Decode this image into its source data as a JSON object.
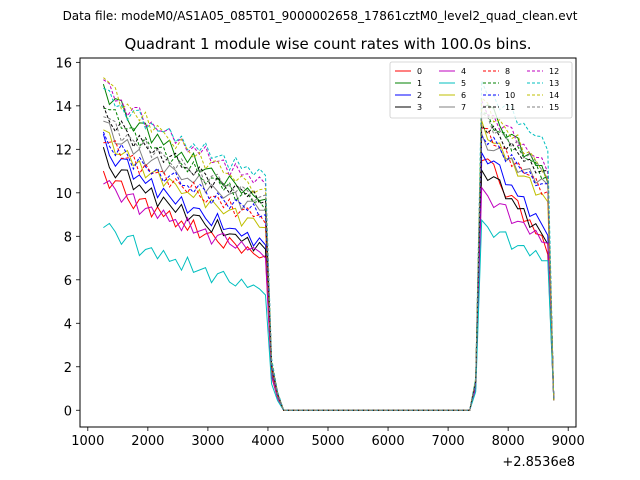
{
  "suptitle": "Data file: modeM0/AS1A05_085T01_9000002658_17861cztM0_level2_quad_clean.evt",
  "chart_data": {
    "type": "line",
    "title": "Quadrant 1 module wise count rates with 100.0s bins.",
    "xlabel": "",
    "ylabel": "",
    "x_offset_label": "+2.8536e8",
    "xlim": [
      870,
      9130
    ],
    "ylim": [
      -0.77,
      16.2
    ],
    "x_ticks": [
      1000,
      2000,
      3000,
      4000,
      5000,
      6000,
      7000,
      8000,
      9000
    ],
    "x_tick_labels": [
      "1000",
      "2000",
      "3000",
      "4000",
      "5000",
      "6000",
      "7000",
      "8000",
      "9000"
    ],
    "y_ticks": [
      0,
      2,
      4,
      6,
      8,
      10,
      12,
      14,
      16
    ],
    "y_tick_labels": [
      "0",
      "2",
      "4",
      "6",
      "8",
      "10",
      "12",
      "14",
      "16"
    ],
    "grid": false,
    "legend_position": "top-right",
    "legend_columns": 4,
    "segments": {
      "first_x": [
        1260,
        1360,
        1460,
        1560,
        1660,
        1760,
        1860,
        1960,
        2060,
        2160,
        2260,
        2360,
        2460,
        2560,
        2660,
        2760,
        2860,
        2960,
        3060,
        3160,
        3260,
        3360,
        3460,
        3560,
        3660,
        3760,
        3860,
        3960,
        4060,
        4160
      ],
      "gap_x": [
        4260,
        5000,
        6000,
        7000,
        7360
      ],
      "gap_value": 0,
      "second_x": [
        7460,
        7560,
        7660,
        7760,
        7860,
        7960,
        8060,
        8160,
        8260,
        8360,
        8460,
        8560,
        8660,
        8760
      ]
    },
    "series": [
      {
        "name": "0",
        "color": "#ff0000",
        "dash": "solid",
        "first_start": 11.0,
        "first_end": 7.0,
        "first_pattern": [
          0.0,
          -0.4,
          0.2,
          0.4,
          -0.2,
          -0.5,
          0.1,
          0.3,
          -0.4,
          0.2,
          -0.1,
          0.3,
          -0.3,
          0.1,
          -0.2,
          0.4,
          -0.3,
          0.0,
          0.2,
          -0.1,
          -0.3,
          0.3,
          0.1,
          -0.2,
          0.2,
          0.0,
          -0.1,
          0.1
        ],
        "second_peak": 11.8,
        "second_end": 7.4
      },
      {
        "name": "1",
        "color": "#008000",
        "dash": "solid",
        "first_start": 15.0,
        "first_end": 9.6,
        "first_pattern": [
          0.0,
          -0.4,
          0.2,
          0.4,
          -0.2,
          -0.5,
          0.1,
          0.3,
          -0.4,
          0.2,
          -0.1,
          0.3,
          -0.3,
          0.1,
          -0.2,
          0.4,
          -0.3,
          0.0,
          0.2,
          -0.1,
          -0.3,
          0.3,
          0.1,
          -0.2,
          0.2,
          0.0,
          -0.1,
          0.1
        ],
        "second_peak": 14.2,
        "second_end": 10.7
      },
      {
        "name": "2",
        "color": "#0000ff",
        "dash": "solid",
        "first_start": 12.4,
        "first_end": 7.6,
        "first_pattern": [
          0.3,
          -0.2,
          -0.4,
          0.2,
          0.4,
          -0.3,
          0.1,
          -0.1,
          0.3,
          -0.4,
          0.2,
          0.0,
          -0.2,
          0.3,
          -0.3,
          0.1,
          0.2,
          -0.1,
          -0.3,
          0.4,
          -0.2,
          0.0,
          0.1,
          -0.1,
          0.2,
          -0.3,
          0.2,
          0.0
        ],
        "second_peak": 12.0,
        "second_end": 8.2
      },
      {
        "name": "3",
        "color": "#000000",
        "dash": "solid",
        "first_start": 11.8,
        "first_end": 7.4,
        "first_pattern": [
          0.3,
          -0.2,
          -0.4,
          0.2,
          0.4,
          -0.3,
          0.1,
          -0.1,
          0.3,
          -0.4,
          0.2,
          0.0,
          -0.2,
          0.3,
          -0.3,
          0.1,
          0.2,
          -0.1,
          -0.3,
          0.4,
          -0.2,
          0.0,
          0.1,
          -0.1,
          0.2,
          -0.3,
          0.2,
          0.0
        ],
        "second_peak": 11.2,
        "second_end": 7.8
      },
      {
        "name": "4",
        "color": "#bf00bf",
        "dash": "solid",
        "first_start": 10.6,
        "first_end": 7.2,
        "first_pattern": [
          -0.2,
          0.3,
          0.1,
          -0.3,
          0.2,
          0.4,
          -0.4,
          0.0,
          0.2,
          -0.2,
          0.3,
          -0.1,
          0.1,
          -0.3,
          0.4,
          -0.2,
          0.0,
          0.2,
          -0.4,
          0.1,
          0.3,
          -0.1,
          -0.2,
          0.2,
          -0.1,
          0.1,
          0.0,
          -0.2
        ],
        "second_peak": 10.0,
        "second_end": 7.6
      },
      {
        "name": "5",
        "color": "#00bfbf",
        "dash": "solid",
        "first_start": 8.6,
        "first_end": 5.5,
        "first_pattern": [
          -0.2,
          0.3,
          0.1,
          -0.3,
          0.2,
          0.4,
          -0.4,
          0.0,
          0.2,
          -0.2,
          0.3,
          -0.1,
          0.1,
          -0.3,
          0.4,
          -0.2,
          0.0,
          0.2,
          -0.4,
          0.1,
          0.3,
          -0.1,
          -0.2,
          0.2,
          -0.1,
          0.1,
          0.0,
          -0.2
        ],
        "second_peak": 8.5,
        "second_end": 6.8
      },
      {
        "name": "6",
        "color": "#bfbf00",
        "dash": "solid",
        "first_start": 12.8,
        "first_end": 8.4,
        "first_pattern": [
          0.1,
          0.4,
          -0.3,
          -0.1,
          0.3,
          -0.2,
          0.2,
          -0.4,
          0.0,
          0.3,
          -0.3,
          0.2,
          0.1,
          -0.2,
          0.0,
          -0.1,
          0.4,
          -0.3,
          0.2,
          0.0,
          -0.2,
          0.1,
          0.3,
          -0.4,
          0.1,
          0.2,
          -0.1,
          0.0
        ],
        "second_peak": 13.0,
        "second_end": 9.5
      },
      {
        "name": "7",
        "color": "#808080",
        "dash": "solid",
        "first_start": 13.2,
        "first_end": 9.2,
        "first_pattern": [
          0.1,
          0.4,
          -0.3,
          -0.1,
          0.3,
          -0.2,
          0.2,
          -0.4,
          0.0,
          0.3,
          -0.3,
          0.2,
          0.1,
          -0.2,
          0.0,
          -0.1,
          0.4,
          -0.3,
          0.2,
          0.0,
          -0.2,
          0.1,
          0.3,
          -0.4,
          0.1,
          0.2,
          -0.1,
          0.0
        ],
        "second_peak": 12.4,
        "second_end": 10.3
      },
      {
        "name": "8",
        "color": "#ff0000",
        "dash": "dashed",
        "first_start": 12.6,
        "first_end": 8.8,
        "first_pattern": [
          -0.3,
          0.1,
          0.4,
          -0.2,
          0.0,
          0.3,
          -0.4,
          0.2,
          -0.1,
          0.1,
          0.3,
          -0.3,
          0.2,
          0.0,
          -0.2,
          0.4,
          -0.1,
          -0.3,
          0.1,
          0.2,
          -0.2,
          0.3,
          -0.4,
          0.0,
          0.2,
          -0.1,
          0.1,
          -0.2
        ],
        "second_peak": 12.9,
        "second_end": 9.9
      },
      {
        "name": "9",
        "color": "#008000",
        "dash": "dashed",
        "first_start": 14.2,
        "first_end": 9.4,
        "first_pattern": [
          -0.3,
          0.1,
          0.4,
          -0.2,
          0.0,
          0.3,
          -0.4,
          0.2,
          -0.1,
          0.1,
          0.3,
          -0.3,
          0.2,
          0.0,
          -0.2,
          0.4,
          -0.1,
          -0.3,
          0.1,
          0.2,
          -0.2,
          0.3,
          -0.4,
          0.0,
          0.2,
          -0.1,
          0.1,
          -0.2
        ],
        "second_peak": 13.6,
        "second_end": 10.6
      },
      {
        "name": "10",
        "color": "#0000ff",
        "dash": "dashed",
        "first_start": 12.6,
        "first_end": 9.0,
        "first_pattern": [
          0.2,
          -0.1,
          -0.3,
          0.4,
          0.1,
          -0.4,
          0.3,
          0.0,
          -0.2,
          0.2,
          -0.3,
          0.1,
          0.4,
          -0.1,
          0.0,
          -0.2,
          0.3,
          0.1,
          -0.4,
          0.2,
          0.0,
          -0.3,
          0.2,
          0.1,
          -0.1,
          0.3,
          -0.2,
          0.0
        ],
        "second_peak": 12.7,
        "second_end": 10.1
      },
      {
        "name": "11",
        "color": "#000000",
        "dash": "dashed",
        "first_start": 13.8,
        "first_end": 9.6,
        "first_pattern": [
          0.2,
          -0.1,
          -0.3,
          0.4,
          0.1,
          -0.4,
          0.3,
          0.0,
          -0.2,
          0.2,
          -0.3,
          0.1,
          0.4,
          -0.1,
          0.0,
          -0.2,
          0.3,
          0.1,
          -0.4,
          0.2,
          0.0,
          -0.3,
          0.2,
          0.1,
          -0.1,
          0.3,
          -0.2,
          0.0
        ],
        "second_peak": 13.2,
        "second_end": 10.7
      },
      {
        "name": "12",
        "color": "#bf00bf",
        "dash": "dashed",
        "first_start": 15.2,
        "first_end": 10.4,
        "first_pattern": [
          0.0,
          0.3,
          -0.2,
          0.1,
          -0.4,
          0.2,
          0.4,
          -0.3,
          0.1,
          -0.1,
          0.0,
          0.3,
          -0.2,
          0.2,
          -0.3,
          0.1,
          -0.1,
          0.4,
          -0.2,
          0.0,
          0.2,
          -0.4,
          0.3,
          -0.1,
          0.1,
          -0.2,
          0.2,
          0.0
        ],
        "second_peak": 14.0,
        "second_end": 11.1
      },
      {
        "name": "13",
        "color": "#00bfbf",
        "dash": "dashed",
        "first_start": 14.8,
        "first_end": 10.8,
        "first_pattern": [
          0.0,
          0.3,
          -0.2,
          0.1,
          -0.4,
          0.2,
          0.4,
          -0.3,
          0.1,
          -0.1,
          0.0,
          0.3,
          -0.2,
          0.2,
          -0.3,
          0.1,
          -0.1,
          0.4,
          -0.2,
          0.0,
          0.2,
          -0.4,
          0.3,
          -0.1,
          0.1,
          -0.2,
          0.2,
          0.0
        ],
        "second_peak": 14.9,
        "second_end": 12.1
      },
      {
        "name": "14",
        "color": "#bfbf00",
        "dash": "dashed",
        "first_start": 15.4,
        "first_end": 10.0,
        "first_pattern": [
          -0.1,
          0.2,
          0.3,
          -0.4,
          0.1,
          0.0,
          -0.2,
          0.4,
          -0.3,
          0.2,
          0.1,
          -0.1,
          -0.3,
          0.3,
          0.0,
          -0.2,
          0.2,
          -0.4,
          0.1,
          0.3,
          -0.1,
          0.0,
          -0.2,
          0.2,
          0.1,
          -0.3,
          0.0,
          0.2
        ],
        "second_peak": 14.2,
        "second_end": 10.8
      },
      {
        "name": "15",
        "color": "#808080",
        "dash": "dashed",
        "first_start": 13.6,
        "first_end": 9.7,
        "first_pattern": [
          -0.1,
          0.2,
          0.3,
          -0.4,
          0.1,
          0.0,
          -0.2,
          0.4,
          -0.3,
          0.2,
          0.1,
          -0.1,
          -0.3,
          0.3,
          0.0,
          -0.2,
          0.2,
          -0.4,
          0.1,
          0.3,
          -0.1,
          0.0,
          -0.2,
          0.2,
          0.1,
          -0.3,
          0.0,
          0.2
        ],
        "second_peak": 13.5,
        "second_end": 10.9
      }
    ]
  }
}
